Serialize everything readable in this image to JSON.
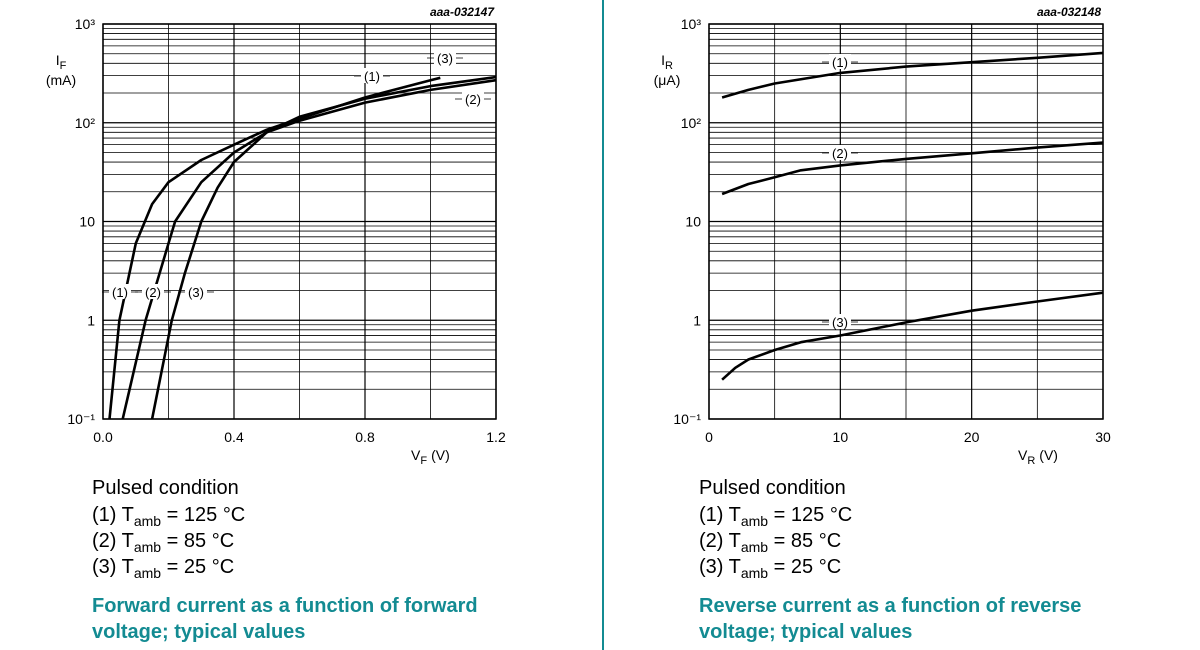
{
  "chart_data": [
    {
      "type": "line",
      "log_y": true,
      "grid": true,
      "code": "aaa-032147",
      "xlabel": {
        "symbol": "V",
        "subscript": "F",
        "unit": "(V)"
      },
      "ylabel": {
        "symbol": "I",
        "subscript": "F",
        "unit": "(mA)"
      },
      "xlim": [
        0,
        1.2
      ],
      "ylim": [
        0.1,
        1000
      ],
      "xticks": [
        {
          "value": 0,
          "label": "0.0"
        },
        0.4,
        0.8,
        1.2
      ],
      "yticks": [
        {
          "value": 1000,
          "label": "10³"
        },
        {
          "value": 100,
          "label": "10²"
        },
        10,
        1,
        {
          "value": 0.1,
          "label": "10⁻¹"
        }
      ],
      "series": [
        {
          "name": "(1)",
          "color": "#000000",
          "x": [
            0.02,
            0.05,
            0.1,
            0.15,
            0.2,
            0.3,
            0.4,
            0.5,
            0.6,
            0.8,
            1.0,
            1.03
          ],
          "values": [
            0.1,
            1,
            6,
            15,
            25,
            42,
            60,
            85,
            110,
            180,
            270,
            285
          ]
        },
        {
          "name": "(2)",
          "color": "#000000",
          "x": [
            0.06,
            0.13,
            0.2,
            0.22,
            0.3,
            0.4,
            0.5,
            0.6,
            0.8,
            1.0,
            1.2
          ],
          "values": [
            0.1,
            1,
            6,
            10,
            25,
            50,
            80,
            105,
            160,
            215,
            270
          ]
        },
        {
          "name": "(3)",
          "color": "#000000",
          "x": [
            0.15,
            0.21,
            0.25,
            0.3,
            0.35,
            0.4,
            0.5,
            0.6,
            0.8,
            1.0,
            1.2
          ],
          "values": [
            0.1,
            1,
            3,
            10,
            22,
            40,
            80,
            115,
            175,
            235,
            290
          ]
        }
      ],
      "note_title": "Pulsed condition",
      "notes": [
        {
          "text": "(1) T",
          "subscript": "amb",
          "rest": " = 125 °C"
        },
        {
          "text": "(2) T",
          "subscript": "amb",
          "rest": " = 85 °C"
        },
        {
          "text": "(3) T",
          "subscript": "amb",
          "rest": " = 25 °C"
        }
      ],
      "caption": [
        "Forward current as a function of forward",
        "voltage; typical values"
      ]
    },
    {
      "type": "line",
      "log_y": true,
      "grid": true,
      "code": "aaa-032148",
      "xlabel": {
        "symbol": "V",
        "subscript": "R",
        "unit": "(V)"
      },
      "ylabel": {
        "symbol": "I",
        "subscript": "R",
        "unit": "(μA)"
      },
      "xlim": [
        0,
        30
      ],
      "ylim": [
        0.1,
        1000
      ],
      "xticks": [
        0,
        10,
        20,
        30
      ],
      "yticks": [
        {
          "value": 1000,
          "label": "10³"
        },
        {
          "value": 100,
          "label": "10²"
        },
        10,
        1,
        {
          "value": 0.1,
          "label": "10⁻¹"
        }
      ],
      "series": [
        {
          "name": "(1)",
          "color": "#000000",
          "x": [
            1,
            3,
            5,
            10,
            15,
            20,
            25,
            30
          ],
          "values": [
            180,
            215,
            250,
            320,
            370,
            410,
            455,
            510
          ]
        },
        {
          "name": "(2)",
          "color": "#000000",
          "x": [
            1,
            3,
            5,
            7,
            10,
            15,
            20,
            25,
            30
          ],
          "values": [
            19,
            24,
            28,
            33,
            37,
            43,
            49,
            56,
            63
          ]
        },
        {
          "name": "(3)",
          "color": "#000000",
          "x": [
            1,
            2,
            3,
            5,
            7,
            10,
            15,
            20,
            25,
            30
          ],
          "values": [
            0.25,
            0.33,
            0.4,
            0.5,
            0.6,
            0.7,
            0.95,
            1.25,
            1.55,
            1.9
          ]
        }
      ],
      "note_title": "Pulsed condition",
      "notes": [
        {
          "text": "(1) T",
          "subscript": "amb",
          "rest": " = 125 °C"
        },
        {
          "text": "(2) T",
          "subscript": "amb",
          "rest": " = 85 °C"
        },
        {
          "text": "(3) T",
          "subscript": "amb",
          "rest": " = 25 °C"
        }
      ],
      "caption": [
        "Reverse current as a function of reverse",
        "voltage; typical values"
      ]
    }
  ]
}
